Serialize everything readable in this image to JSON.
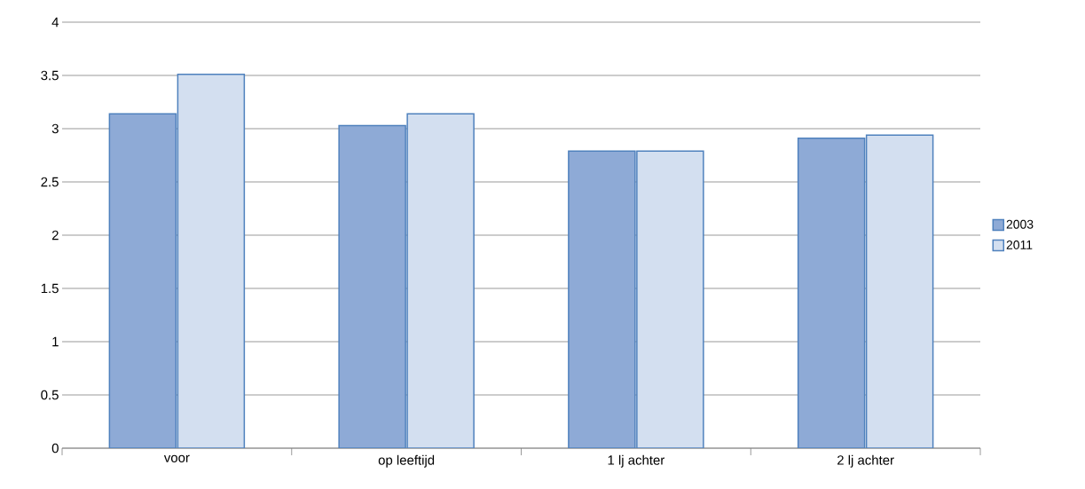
{
  "chart_data": {
    "type": "bar",
    "categories": [
      "voor",
      "op leeftijd",
      "1 lj achter",
      "2 lj achter"
    ],
    "series": [
      {
        "name": "2003",
        "color": "#8eaad6",
        "values": [
          3.14,
          3.03,
          2.79,
          2.91
        ]
      },
      {
        "name": "2011",
        "color": "#d3dff0",
        "values": [
          3.51,
          3.14,
          2.79,
          2.94
        ]
      }
    ],
    "ylim": [
      0,
      4
    ],
    "yticks": [
      0,
      0.5,
      1,
      1.5,
      2,
      2.5,
      3,
      3.5,
      4
    ],
    "grid": "y",
    "legend": "right"
  }
}
